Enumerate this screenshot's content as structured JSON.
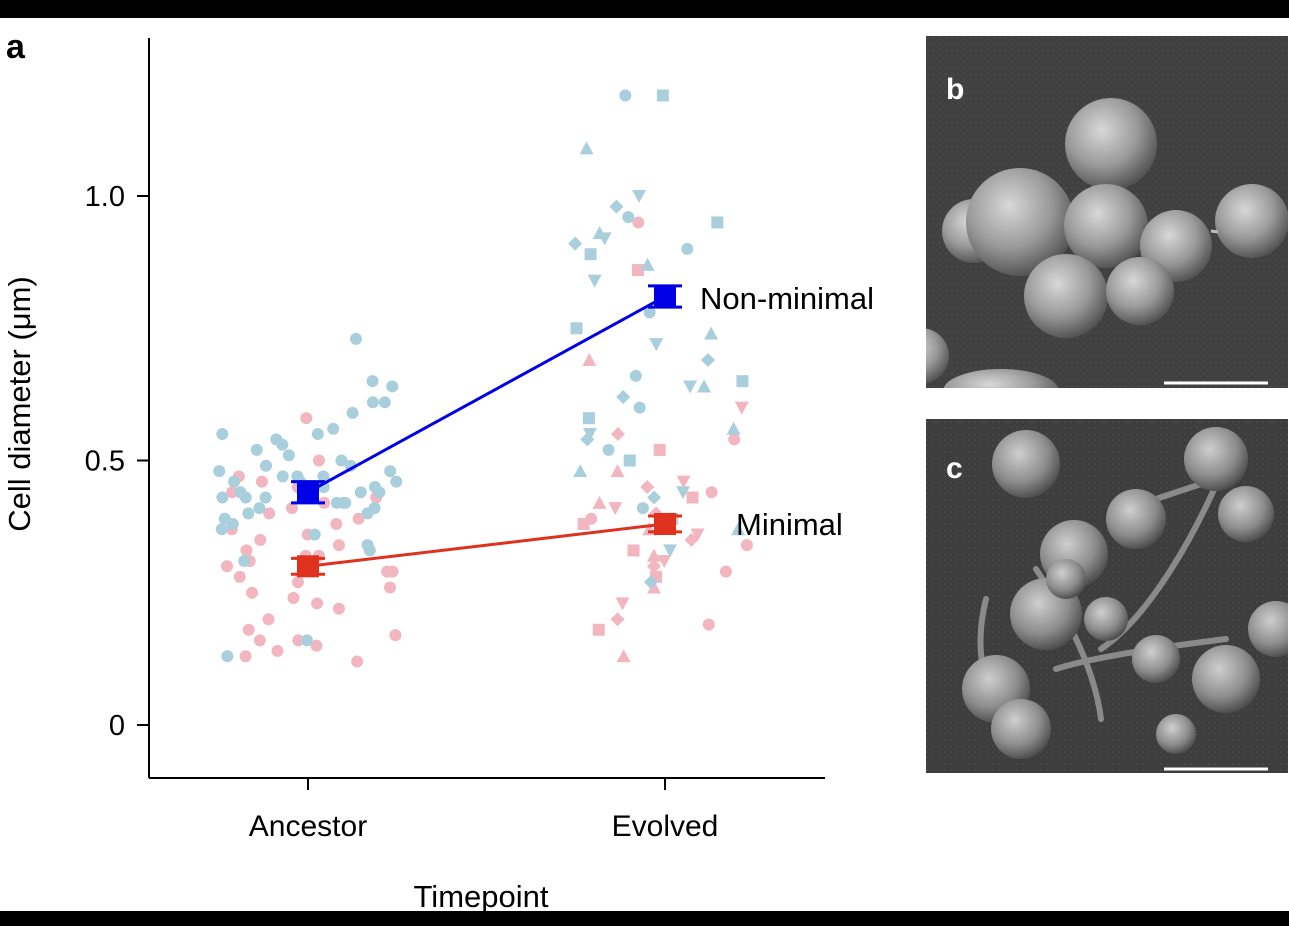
{
  "panel_labels": {
    "a": "a",
    "b": "b",
    "c": "c"
  },
  "colors": {
    "non_minimal": "#0000e6",
    "minimal": "#e0301e",
    "non_minimal_points": "#a9cfdc",
    "minimal_points": "#f2b6c0",
    "micrograph_bg": "#3f3f3f",
    "scale_bar": "#ffffff"
  },
  "chart_data": {
    "type": "scatter",
    "title": "",
    "xlabel": "Timepoint",
    "ylabel": "Cell diameter (μm)",
    "categories": [
      "Ancestor",
      "Evolved"
    ],
    "ylim": [
      -0.1,
      1.3
    ],
    "yticks": [
      0,
      0.5,
      1.0
    ],
    "ytick_labels": [
      "0",
      "0.5",
      "1.0"
    ],
    "grid": false,
    "series": [
      {
        "name": "Non-minimal",
        "label": "Non-minimal",
        "color": "#0000e6",
        "point_color": "#a9cfdc",
        "means": [
          0.44,
          0.81
        ],
        "errors": [
          0.02,
          0.02
        ],
        "points": {
          "Ancestor": [
            0.73,
            0.65,
            0.64,
            0.61,
            0.61,
            0.59,
            0.56,
            0.55,
            0.55,
            0.54,
            0.53,
            0.52,
            0.51,
            0.5,
            0.49,
            0.49,
            0.48,
            0.48,
            0.47,
            0.47,
            0.47,
            0.46,
            0.46,
            0.46,
            0.45,
            0.45,
            0.45,
            0.44,
            0.44,
            0.44,
            0.43,
            0.43,
            0.43,
            0.42,
            0.42,
            0.42,
            0.41,
            0.41,
            0.4,
            0.4,
            0.39,
            0.38,
            0.37,
            0.36,
            0.34,
            0.33,
            0.31,
            0.16,
            0.13
          ],
          "Evolved": [
            1.19,
            1.19,
            1.09,
            1.0,
            0.98,
            0.96,
            0.95,
            0.93,
            0.92,
            0.91,
            0.9,
            0.89,
            0.87,
            0.84,
            0.81,
            0.78,
            0.75,
            0.74,
            0.72,
            0.69,
            0.66,
            0.65,
            0.64,
            0.64,
            0.62,
            0.6,
            0.58,
            0.56,
            0.55,
            0.54,
            0.52,
            0.5,
            0.48,
            0.44,
            0.43,
            0.41,
            0.39,
            0.37,
            0.33,
            0.27
          ]
        }
      },
      {
        "name": "Minimal",
        "label": "Minimal",
        "color": "#e0301e",
        "point_color": "#f2b6c0",
        "means": [
          0.3,
          0.38
        ],
        "errors": [
          0.015,
          0.015
        ],
        "points": {
          "Ancestor": [
            0.58,
            0.5,
            0.47,
            0.46,
            0.45,
            0.44,
            0.44,
            0.43,
            0.42,
            0.41,
            0.4,
            0.39,
            0.38,
            0.37,
            0.36,
            0.35,
            0.34,
            0.33,
            0.32,
            0.32,
            0.31,
            0.3,
            0.29,
            0.29,
            0.28,
            0.27,
            0.26,
            0.25,
            0.24,
            0.23,
            0.22,
            0.2,
            0.18,
            0.17,
            0.16,
            0.16,
            0.15,
            0.14,
            0.13,
            0.12
          ],
          "Evolved": [
            0.95,
            0.86,
            0.69,
            0.6,
            0.55,
            0.54,
            0.52,
            0.48,
            0.46,
            0.45,
            0.44,
            0.43,
            0.42,
            0.41,
            0.4,
            0.39,
            0.38,
            0.37,
            0.36,
            0.35,
            0.34,
            0.33,
            0.32,
            0.31,
            0.3,
            0.29,
            0.28,
            0.26,
            0.23,
            0.2,
            0.19,
            0.18,
            0.13
          ]
        }
      }
    ]
  }
}
